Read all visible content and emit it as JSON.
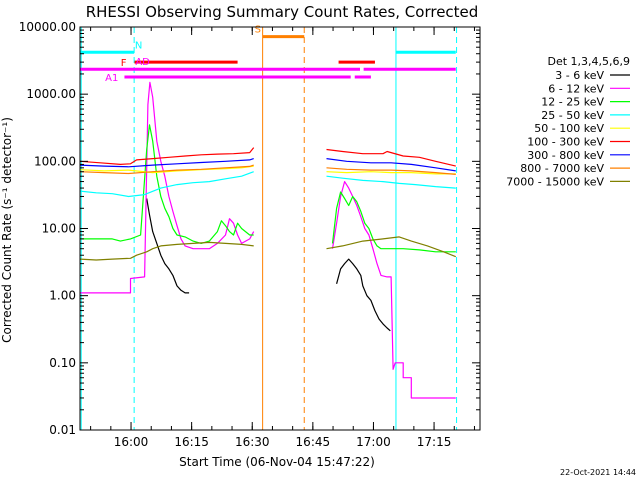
{
  "chart_data": {
    "type": "line",
    "title": "RHESSI Observing Summary Count Rates, Corrected",
    "xlabel": "Start Time (06-Nov-04 15:47:22)",
    "ylabel": "Corrected Count Rate (s⁻¹ detector⁻¹)",
    "y_scale": "log",
    "ylim": [
      0.01,
      10000
    ],
    "y_ticks": [
      {
        "v": 10000,
        "label": "10000.00"
      },
      {
        "v": 1000,
        "label": "1000.00"
      },
      {
        "v": 100,
        "label": "100.00"
      },
      {
        "v": 10,
        "label": "10.00"
      },
      {
        "v": 1,
        "label": "1.00"
      },
      {
        "v": 0.1,
        "label": "0.10"
      },
      {
        "v": 0.01,
        "label": "0.01"
      }
    ],
    "x_unit": "minutes since 15:47:22",
    "xlim": [
      0,
      99
    ],
    "x_ticks": [
      {
        "v": 12.63,
        "label": "16:00"
      },
      {
        "v": 27.63,
        "label": "16:15"
      },
      {
        "v": 42.63,
        "label": "16:30"
      },
      {
        "v": 57.63,
        "label": "16:45"
      },
      {
        "v": 72.63,
        "label": "17:00"
      },
      {
        "v": 87.63,
        "label": "17:15"
      }
    ],
    "legend_title": "Det 1,3,4,5,6,9",
    "legend_position": "right",
    "series": [
      {
        "name": "3 - 6 keV",
        "color": "#000000",
        "segments": [
          [
            [
              16.5,
              28
            ],
            [
              17.2,
              16
            ],
            [
              18,
              9
            ],
            [
              19,
              6
            ],
            [
              20,
              4
            ],
            [
              21,
              3
            ],
            [
              22,
              2.5
            ],
            [
              23,
              2
            ],
            [
              24,
              1.4
            ],
            [
              25,
              1.2
            ],
            [
              26,
              1.1
            ],
            [
              27,
              1.1
            ]
          ],
          [
            [
              63.5,
              1.5
            ],
            [
              64.5,
              2.5
            ],
            [
              65.5,
              3.0
            ],
            [
              66.5,
              3.5
            ],
            [
              67.5,
              3.0
            ],
            [
              68.5,
              2.5
            ],
            [
              69.5,
              2.0
            ],
            [
              70,
              1.4
            ],
            [
              71,
              1.0
            ],
            [
              72,
              0.85
            ],
            [
              73,
              0.6
            ],
            [
              74,
              0.45
            ],
            [
              75,
              0.38
            ],
            [
              76,
              0.33
            ],
            [
              76.8,
              0.3
            ]
          ]
        ]
      },
      {
        "name": "6 - 12 keV",
        "color": "#ff00ff",
        "segments": [
          [
            [
              0,
              1.1
            ],
            [
              12.5,
              1.1
            ],
            [
              12.5,
              1.8
            ],
            [
              16,
              1.9
            ],
            [
              16.8,
              700
            ],
            [
              17.3,
              1500
            ],
            [
              18,
              900
            ],
            [
              19,
              200
            ],
            [
              20,
              100
            ],
            [
              21,
              60
            ],
            [
              22,
              30
            ],
            [
              23,
              18
            ],
            [
              24,
              11
            ],
            [
              25,
              7
            ],
            [
              26,
              5.5
            ],
            [
              28,
              5
            ],
            [
              30,
              5
            ],
            [
              32,
              5
            ],
            [
              34,
              6
            ],
            [
              36,
              8
            ],
            [
              37,
              14
            ],
            [
              38,
              12
            ],
            [
              39,
              8
            ],
            [
              40,
              6
            ],
            [
              42,
              7
            ],
            [
              43,
              9
            ]
          ],
          [
            [
              62.5,
              5
            ],
            [
              63.5,
              12
            ],
            [
              64.5,
              30
            ],
            [
              65.5,
              50
            ],
            [
              66.5,
              40
            ],
            [
              67.5,
              30
            ],
            [
              68.5,
              22
            ],
            [
              69.5,
              15
            ],
            [
              70.5,
              10
            ],
            [
              71.5,
              8
            ],
            [
              72.5,
              5
            ],
            [
              73.5,
              3
            ],
            [
              74.5,
              2
            ],
            [
              76,
              1.9
            ],
            [
              77,
              1.9
            ],
            [
              77.5,
              0.08
            ],
            [
              78,
              0.1
            ],
            [
              80,
              0.1
            ],
            [
              80,
              0.06
            ],
            [
              82,
              0.06
            ],
            [
              82,
              0.03
            ],
            [
              93,
              0.03
            ]
          ]
        ]
      },
      {
        "name": "12 - 25 keV",
        "color": "#00ff00",
        "segments": [
          [
            [
              0,
              7
            ],
            [
              8,
              7
            ],
            [
              10,
              6.5
            ],
            [
              12.5,
              7
            ],
            [
              15,
              8
            ],
            [
              16.5,
              150
            ],
            [
              17.2,
              350
            ],
            [
              18,
              200
            ],
            [
              19,
              60
            ],
            [
              20,
              30
            ],
            [
              21,
              20
            ],
            [
              22,
              15
            ],
            [
              23,
              10
            ],
            [
              24,
              8
            ],
            [
              26,
              7.5
            ],
            [
              28,
              6.5
            ],
            [
              30,
              6
            ],
            [
              32,
              6.5
            ],
            [
              34,
              9
            ],
            [
              35,
              13
            ],
            [
              36,
              11
            ],
            [
              37,
              9
            ],
            [
              38,
              8
            ],
            [
              39,
              12
            ],
            [
              40,
              10
            ],
            [
              42,
              8
            ],
            [
              43,
              8
            ]
          ],
          [
            [
              62.5,
              6
            ],
            [
              63.5,
              20
            ],
            [
              64.5,
              35
            ],
            [
              65.5,
              28
            ],
            [
              66.5,
              22
            ],
            [
              67.5,
              30
            ],
            [
              68.5,
              25
            ],
            [
              69.5,
              18
            ],
            [
              70.5,
              12
            ],
            [
              71.5,
              10
            ],
            [
              72.5,
              7
            ],
            [
              73.5,
              5.5
            ],
            [
              74.5,
              5
            ],
            [
              76,
              5
            ],
            [
              78,
              5
            ],
            [
              80,
              5
            ],
            [
              84,
              4.8
            ],
            [
              88,
              4.5
            ],
            [
              93,
              4.5
            ]
          ]
        ]
      },
      {
        "name": "25 - 50 keV",
        "color": "#00ffff",
        "segments": [
          [
            [
              0,
              36
            ],
            [
              4,
              34
            ],
            [
              8,
              33
            ],
            [
              12,
              30
            ],
            [
              16,
              32
            ],
            [
              20,
              40
            ],
            [
              24,
              45
            ],
            [
              28,
              48
            ],
            [
              32,
              50
            ],
            [
              36,
              55
            ],
            [
              40,
              60
            ],
            [
              43,
              70
            ]
          ],
          [
            [
              61,
              60
            ],
            [
              65,
              56
            ],
            [
              70,
              52
            ],
            [
              75,
              50
            ],
            [
              79,
              47
            ],
            [
              83,
              45
            ],
            [
              88,
              42
            ],
            [
              93,
              40
            ]
          ]
        ]
      },
      {
        "name": "50 - 100 keV",
        "color": "#ffff00",
        "segments": [
          [
            [
              0,
              75
            ],
            [
              6,
              72
            ],
            [
              12,
              74
            ],
            [
              18,
              68
            ],
            [
              24,
              72
            ],
            [
              30,
              75
            ],
            [
              36,
              78
            ],
            [
              40,
              80
            ],
            [
              43,
              85
            ]
          ],
          [
            [
              61,
              70
            ],
            [
              66,
              68
            ],
            [
              72,
              70
            ],
            [
              77,
              68
            ],
            [
              82,
              68
            ],
            [
              88,
              65
            ],
            [
              93,
              65
            ]
          ]
        ]
      },
      {
        "name": "100 - 300 keV",
        "color": "#ff0000",
        "segments": [
          [
            [
              0,
              100
            ],
            [
              5,
              95
            ],
            [
              10,
              90
            ],
            [
              12.5,
              92
            ],
            [
              14,
              105
            ],
            [
              18,
              110
            ],
            [
              22,
              115
            ],
            [
              26,
              120
            ],
            [
              30,
              125
            ],
            [
              34,
              128
            ],
            [
              38,
              130
            ],
            [
              42,
              135
            ],
            [
              43,
              160
            ]
          ],
          [
            [
              61,
              150
            ],
            [
              65,
              140
            ],
            [
              70,
              130
            ],
            [
              75,
              130
            ],
            [
              76,
              140
            ],
            [
              80,
              120
            ],
            [
              84,
              115
            ],
            [
              88,
              100
            ],
            [
              93,
              85
            ]
          ]
        ]
      },
      {
        "name": "300 - 800 keV",
        "color": "#0000ff",
        "segments": [
          [
            [
              0,
              88
            ],
            [
              6,
              85
            ],
            [
              12,
              83
            ],
            [
              18,
              88
            ],
            [
              24,
              92
            ],
            [
              30,
              96
            ],
            [
              36,
              100
            ],
            [
              42,
              105
            ],
            [
              43,
              110
            ]
          ],
          [
            [
              61,
              110
            ],
            [
              66,
              100
            ],
            [
              72,
              95
            ],
            [
              77,
              95
            ],
            [
              82,
              90
            ],
            [
              88,
              80
            ],
            [
              93,
              72
            ]
          ]
        ]
      },
      {
        "name": "800 - 7000 keV",
        "color": "#ff8000",
        "segments": [
          [
            [
              0,
              70
            ],
            [
              6,
              68
            ],
            [
              12,
              66
            ],
            [
              18,
              70
            ],
            [
              24,
              74
            ],
            [
              30,
              76
            ],
            [
              36,
              80
            ],
            [
              42,
              84
            ],
            [
              43,
              88
            ]
          ],
          [
            [
              61,
              80
            ],
            [
              66,
              76
            ],
            [
              72,
              74
            ],
            [
              77,
              74
            ],
            [
              82,
              72
            ],
            [
              88,
              68
            ],
            [
              93,
              64
            ]
          ]
        ]
      },
      {
        "name": "7000 - 15000 keV",
        "color": "#808000",
        "segments": [
          [
            [
              0,
              3.5
            ],
            [
              4,
              3.4
            ],
            [
              8,
              3.5
            ],
            [
              12.5,
              3.6
            ],
            [
              14,
              4
            ],
            [
              16.5,
              4.5
            ],
            [
              18,
              5
            ],
            [
              20,
              5.5
            ],
            [
              24,
              5.8
            ],
            [
              28,
              6.0
            ],
            [
              32,
              6.2
            ],
            [
              36,
              6.0
            ],
            [
              40,
              5.8
            ],
            [
              43,
              5.5
            ]
          ],
          [
            [
              61,
              5
            ],
            [
              65,
              5.5
            ],
            [
              70,
              6.5
            ],
            [
              75,
              7
            ],
            [
              79,
              7.5
            ],
            [
              82,
              6.5
            ],
            [
              86,
              5.5
            ],
            [
              90,
              4.5
            ],
            [
              93,
              3.8
            ]
          ]
        ]
      }
    ],
    "flag_bars": [
      {
        "label": "N",
        "color": "#00ffff",
        "level": 4200,
        "label_x": 14.5,
        "label_side": "above",
        "spans": [
          [
            0,
            13.4
          ],
          [
            78.2,
            93
          ]
        ]
      },
      {
        "label": "S",
        "color": "#ff8000",
        "level": 7200,
        "label_x": 44,
        "label_side": "above",
        "spans": [
          [
            45.2,
            55.5
          ]
        ]
      },
      {
        "label": "F",
        "color": "#ff0000",
        "level": 3000,
        "label_x": 11.5,
        "label_side": "left",
        "spans": [
          [
            13.5,
            39
          ],
          [
            64,
            73
          ]
        ]
      },
      {
        "label": "AD",
        "color": "#ff00ff",
        "level": 2350,
        "label_x": 15.5,
        "label_side": "above",
        "spans": [
          [
            0,
            69.3
          ],
          [
            70.2,
            93
          ]
        ]
      },
      {
        "label": "A1",
        "color": "#ff00ff",
        "level": 1800,
        "label_x": 9.5,
        "label_side": "left",
        "spans": [
          [
            11,
            67
          ],
          [
            68,
            72
          ]
        ]
      }
    ],
    "markers": [
      {
        "x": 13.4,
        "color": "#00ffff",
        "style": "dashed"
      },
      {
        "x": 45.2,
        "color": "#ff8000",
        "style": "solid"
      },
      {
        "x": 55.5,
        "color": "#ff8000",
        "style": "dashed"
      },
      {
        "x": 78.2,
        "color": "#00ffff",
        "style": "solid"
      },
      {
        "x": 93.2,
        "color": "#00ffff",
        "style": "dashed"
      },
      {
        "x": 0.3,
        "color": "#00ffff",
        "style": "solid"
      }
    ],
    "timestamp": "22-Oct-2021 14:44"
  }
}
